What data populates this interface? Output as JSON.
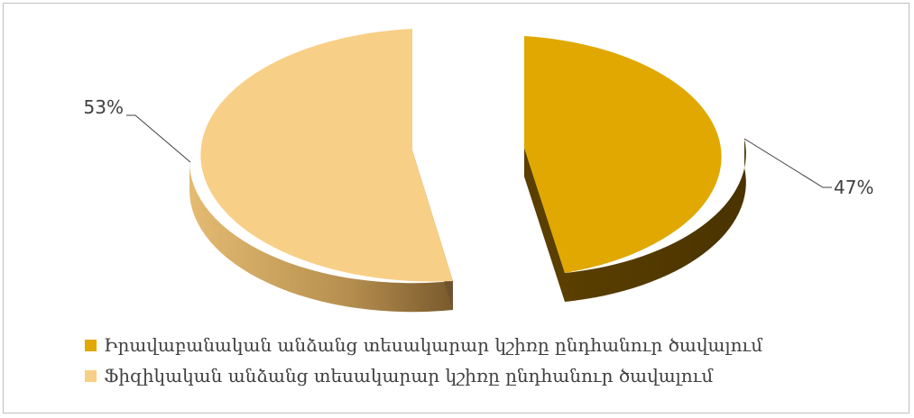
{
  "chart_data": {
    "type": "pie",
    "title": "",
    "series": [
      {
        "name": "Իրավաբանական անձանց տեսակարար կշիռը ընդհանուր ծավալում",
        "value": 47,
        "label": "47%",
        "color": "#E0A800"
      },
      {
        "name": "Ֆիզիկական անձանց տեսակարար կշիռը ընդհանուր ծավալում",
        "value": 53,
        "label": "53%",
        "color": "#F8CF86"
      }
    ],
    "style": "3d-exploded",
    "legend": "bottom-left"
  }
}
